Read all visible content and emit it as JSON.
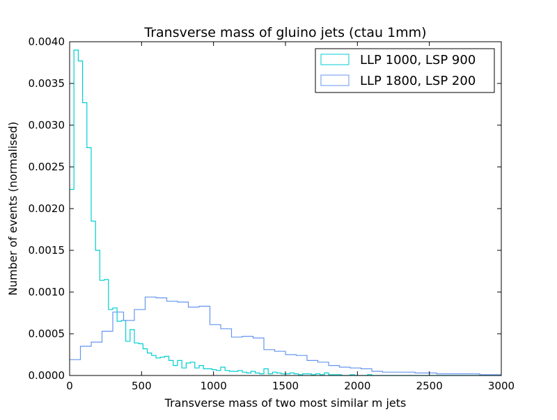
{
  "chart_data": {
    "type": "histogram-step",
    "title": "Transverse mass of gluino jets (ctau 1mm)",
    "xlabel": "Transverse mass of two most similar m jets",
    "ylabel": "Number of events (normalised)",
    "xlim": [
      0,
      3000
    ],
    "ylim": [
      0,
      0.004
    ],
    "xticks": [
      0,
      500,
      1000,
      1500,
      2000,
      2500,
      3000
    ],
    "xtick_labels": [
      "0",
      "500",
      "1000",
      "1500",
      "2000",
      "2500",
      "3000"
    ],
    "yticks": [
      0,
      0.0005,
      0.001,
      0.0015,
      0.002,
      0.0025,
      0.003,
      0.0035,
      0.004
    ],
    "ytick_labels": [
      "0.0000",
      "0.0005",
      "0.0010",
      "0.0015",
      "0.0020",
      "0.0025",
      "0.0030",
      "0.0035",
      "0.0040"
    ],
    "grid": false,
    "legend_position": "top-right",
    "bin_width": 30,
    "series": [
      {
        "name": "LLP 1000, LSP 900",
        "color": "#00ced1",
        "edges": [
          0,
          30,
          60,
          90,
          120,
          150,
          180,
          210,
          240,
          270,
          300,
          330,
          360,
          390,
          420,
          450,
          480,
          510,
          540,
          570,
          600,
          630,
          660,
          690,
          720,
          750,
          780,
          810,
          840,
          870,
          900,
          930,
          960,
          990,
          1020,
          1050,
          1080,
          1110,
          1140,
          1170,
          1200,
          1230,
          1260,
          1290,
          1320,
          1350,
          1380,
          1410,
          1440,
          1470,
          1500,
          1530,
          1560,
          1590,
          1620,
          1650,
          1680,
          1710,
          1740,
          1770,
          1800,
          1830,
          1860,
          1890,
          1920,
          1950,
          1980,
          2010,
          2040,
          2070,
          2100,
          2130,
          2160,
          2190,
          2220,
          2250,
          2280,
          2310,
          2340,
          2370,
          2400,
          2430,
          2460,
          2490,
          2520,
          2550,
          2580,
          2610,
          2640,
          2670,
          2700,
          2730,
          2760,
          2790,
          2820,
          2850,
          2880,
          2910,
          2940,
          2970,
          3000
        ],
        "values": [
          0.00223,
          0.0039,
          0.00377,
          0.00327,
          0.00273,
          0.00185,
          0.0015,
          0.00114,
          0.00115,
          0.00079,
          0.00081,
          0.00065,
          0.00066,
          0.00041,
          0.00055,
          0.00039,
          0.00038,
          0.00032,
          0.00027,
          0.00024,
          0.00021,
          0.00022,
          0.00023,
          0.00018,
          0.00012,
          0.00018,
          9e-05,
          0.00015,
          0.00016,
          9e-05,
          0.00012,
          8e-05,
          8e-05,
          7e-05,
          6e-05,
          0.0001,
          6e-05,
          5e-05,
          5e-05,
          6e-05,
          4e-05,
          3e-05,
          5e-05,
          3e-05,
          2e-05,
          8e-05,
          2e-05,
          4e-05,
          3e-05,
          2e-05,
          2e-05,
          3e-05,
          2e-05,
          1e-05,
          2e-05,
          2e-05,
          1e-05,
          2e-05,
          1e-05,
          3e-05,
          1e-05,
          1e-05,
          1e-05,
          0.0,
          0.0,
          1e-05,
          0.0,
          0.0,
          0.0,
          1e-05,
          0.0,
          0.0,
          0.0,
          0.0,
          0.0,
          0.0,
          0.0,
          0.0,
          0.0,
          0.0,
          0.0,
          0.0,
          0.0,
          0.0,
          0.0,
          0.0,
          0.0,
          0.0,
          0.0,
          0.0,
          0.0,
          0.0,
          0.0,
          0.0,
          0.0,
          0.0,
          0.0,
          0.0,
          0.0,
          0.0
        ]
      },
      {
        "name": "LLP 1800, LSP 200",
        "color": "#6495ed",
        "edges": [
          0,
          75,
          150,
          225,
          300,
          375,
          450,
          525,
          600,
          675,
          750,
          825,
          900,
          975,
          1050,
          1125,
          1200,
          1275,
          1350,
          1425,
          1500,
          1575,
          1650,
          1725,
          1800,
          1875,
          1950,
          2025,
          2100,
          2175,
          2250,
          2325,
          2400,
          2475,
          2550,
          2625,
          2700,
          2775,
          2850,
          2925,
          3000
        ],
        "values": [
          0.00019,
          0.00035,
          0.0004,
          0.00053,
          0.00076,
          0.00066,
          0.00079,
          0.00094,
          0.00093,
          0.00089,
          0.00088,
          0.00082,
          0.00083,
          0.00061,
          0.00056,
          0.00046,
          0.00047,
          0.00045,
          0.00031,
          0.00029,
          0.00025,
          0.00024,
          0.00018,
          0.00016,
          0.00012,
          0.0001,
          9e-05,
          8e-05,
          5e-05,
          4e-05,
          4e-05,
          4e-05,
          3e-05,
          3e-05,
          2e-05,
          2e-05,
          2e-05,
          2e-05,
          1e-05,
          1e-05
        ]
      }
    ]
  }
}
